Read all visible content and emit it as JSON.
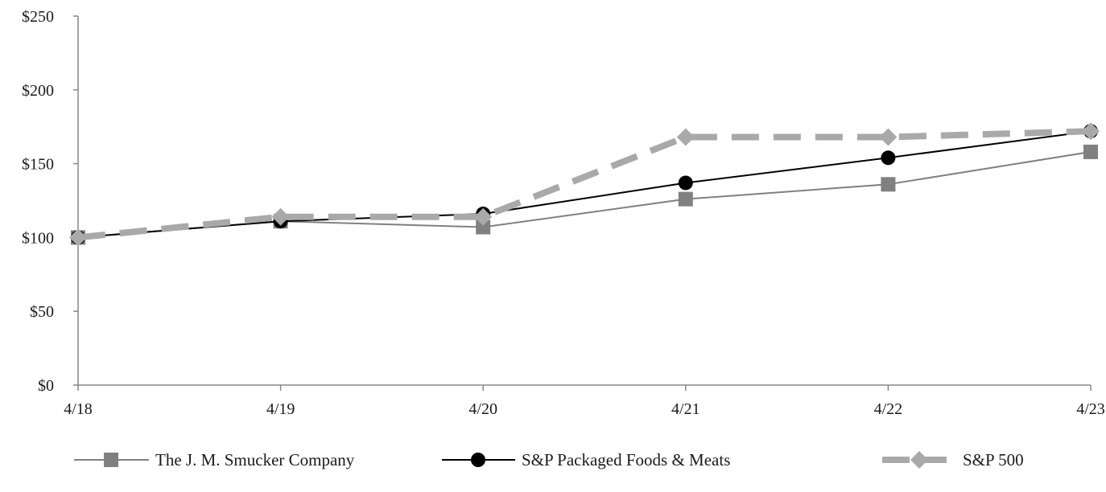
{
  "chart_data": {
    "type": "line",
    "title": "",
    "xlabel": "",
    "ylabel": "",
    "categories": [
      "4/18",
      "4/19",
      "4/20",
      "4/21",
      "4/22",
      "4/23"
    ],
    "ylim": [
      0,
      250
    ],
    "yticks": [
      0,
      50,
      100,
      150,
      200,
      250
    ],
    "ytick_labels": [
      "$0",
      "$50",
      "$100",
      "$150",
      "$200",
      "$250"
    ],
    "legend_position": "bottom",
    "grid": false,
    "series": [
      {
        "name": "The J. M. Smucker Company",
        "values": [
          100,
          111,
          107,
          126,
          136,
          158
        ],
        "color": "#808080",
        "marker": "square",
        "line_style": "solid"
      },
      {
        "name": "S&P Packaged Foods & Meats",
        "values": [
          100,
          111,
          116,
          137,
          154,
          172
        ],
        "color": "#000000",
        "marker": "circle",
        "line_style": "solid"
      },
      {
        "name": "S&P 500",
        "values": [
          100,
          114,
          114,
          168,
          168,
          172
        ],
        "color": "#a9a9a9",
        "marker": "diamond",
        "line_style": "dashed"
      }
    ]
  }
}
